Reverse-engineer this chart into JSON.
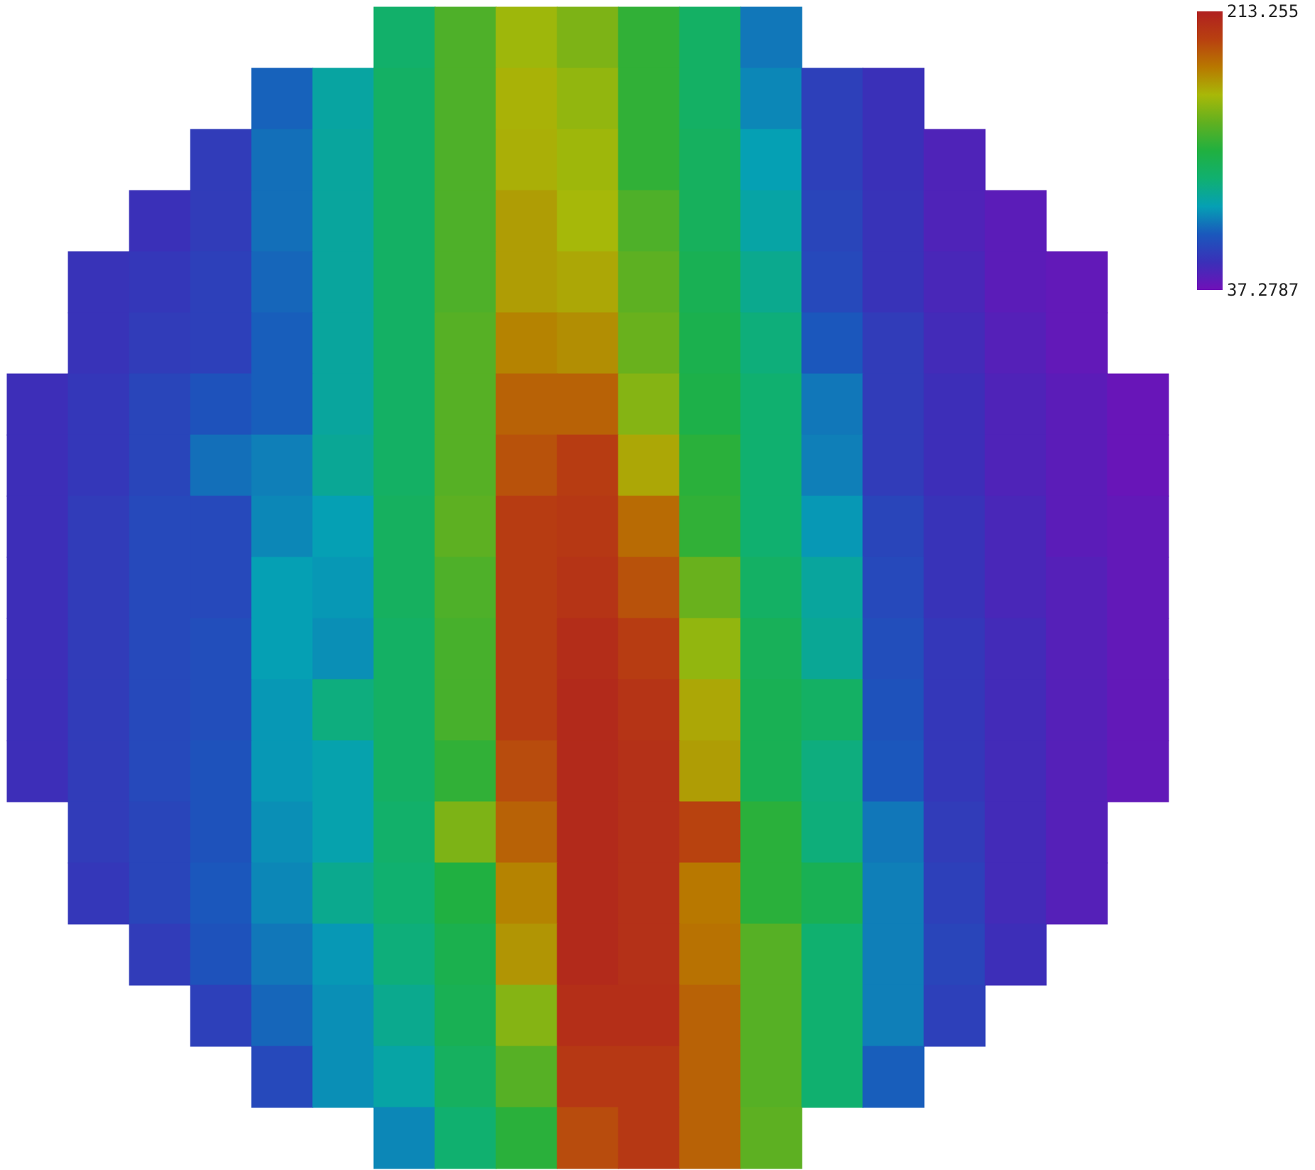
{
  "chart_data": {
    "type": "heatmap",
    "categories": [
      null,
      null,
      null,
      null,
      null,
      null,
      null,
      null,
      null,
      null,
      null,
      null,
      null,
      null,
      null,
      null,
      null,
      null,
      null
    ],
    "y_categories": [
      null,
      null,
      null,
      null,
      null,
      null,
      null,
      null,
      null,
      null,
      null,
      null,
      null,
      null,
      null,
      null,
      null,
      null,
      null
    ],
    "tick_labels": false,
    "clim": [
      37.2787,
      213.255
    ],
    "cticks": [
      37.2787,
      213.255
    ],
    "cells": [
      [
        null,
        null,
        null,
        null,
        null,
        null,
        110,
        138,
        158,
        150,
        130,
        112,
        80,
        null,
        null,
        null,
        null,
        null,
        null
      ],
      [
        null,
        null,
        null,
        null,
        75,
        95,
        112,
        138,
        162,
        155,
        130,
        112,
        84,
        62,
        55,
        null,
        null,
        null,
        null
      ],
      [
        null,
        null,
        null,
        60,
        78,
        96,
        112,
        138,
        163,
        158,
        130,
        114,
        90,
        62,
        55,
        48,
        null,
        null,
        null
      ],
      [
        null,
        null,
        55,
        60,
        78,
        96,
        112,
        138,
        168,
        160,
        138,
        115,
        94,
        64,
        56,
        48,
        44,
        null,
        null
      ],
      [
        null,
        56,
        58,
        62,
        76,
        96,
        112,
        138,
        168,
        165,
        142,
        118,
        100,
        66,
        56,
        50,
        44,
        42,
        null
      ],
      [
        null,
        56,
        60,
        62,
        74,
        96,
        112,
        140,
        175,
        172,
        145,
        120,
        105,
        72,
        60,
        52,
        46,
        42,
        null
      ],
      [
        54,
        58,
        64,
        70,
        74,
        96,
        112,
        140,
        185,
        185,
        152,
        122,
        108,
        80,
        60,
        54,
        48,
        44,
        40
      ],
      [
        54,
        58,
        64,
        78,
        82,
        98,
        112,
        140,
        190,
        198,
        165,
        128,
        108,
        82,
        60,
        54,
        48,
        44,
        40
      ],
      [
        54,
        60,
        66,
        66,
        84,
        90,
        114,
        142,
        198,
        200,
        182,
        130,
        108,
        88,
        64,
        56,
        50,
        44,
        42
      ],
      [
        54,
        60,
        66,
        66,
        90,
        88,
        114,
        138,
        198,
        202,
        190,
        145,
        112,
        96,
        66,
        56,
        50,
        46,
        42
      ],
      [
        54,
        60,
        66,
        68,
        90,
        86,
        112,
        136,
        198,
        206,
        198,
        155,
        116,
        98,
        68,
        58,
        52,
        46,
        42
      ],
      [
        54,
        60,
        66,
        68,
        88,
        104,
        112,
        136,
        198,
        208,
        202,
        165,
        118,
        112,
        70,
        58,
        52,
        46,
        42
      ],
      [
        54,
        60,
        66,
        70,
        88,
        92,
        112,
        130,
        192,
        208,
        204,
        168,
        118,
        104,
        72,
        58,
        52,
        46,
        42
      ],
      [
        null,
        60,
        64,
        70,
        86,
        92,
        110,
        150,
        185,
        208,
        204,
        195,
        128,
        105,
        80,
        60,
        52,
        46,
        null
      ],
      [
        null,
        58,
        64,
        72,
        84,
        100,
        108,
        125,
        175,
        208,
        204,
        178,
        128,
        118,
        82,
        62,
        52,
        46,
        null
      ],
      [
        null,
        null,
        60,
        70,
        80,
        88,
        105,
        120,
        170,
        208,
        204,
        180,
        140,
        108,
        82,
        64,
        54,
        null,
        null
      ],
      [
        null,
        null,
        null,
        62,
        76,
        86,
        100,
        118,
        152,
        205,
        205,
        185,
        140,
        108,
        82,
        62,
        null,
        null,
        null
      ],
      [
        null,
        null,
        null,
        null,
        66,
        86,
        94,
        114,
        140,
        200,
        200,
        185,
        140,
        108,
        74,
        null,
        null,
        null,
        null
      ],
      [
        null,
        null,
        null,
        null,
        null,
        null,
        84,
        108,
        128,
        192,
        200,
        185,
        142,
        null,
        null,
        null,
        null,
        null,
        null
      ]
    ]
  }
}
